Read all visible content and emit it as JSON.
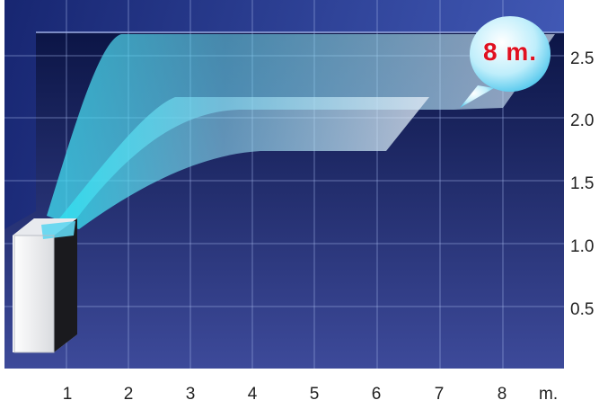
{
  "y_ticks": [
    "2.5",
    "2.0",
    "1.5",
    "1.0",
    "0.5"
  ],
  "x_ticks": [
    "1",
    "2",
    "3",
    "4",
    "5",
    "6",
    "7",
    "8"
  ],
  "x_unit": "m.",
  "callout": "8 m.",
  "colors": {
    "background_top": "#07103e",
    "background_bottom": "#3d4a9a",
    "grid": "#9fb0e6",
    "airflow": "#5fd6f0",
    "callout_text": "#e01020"
  }
}
